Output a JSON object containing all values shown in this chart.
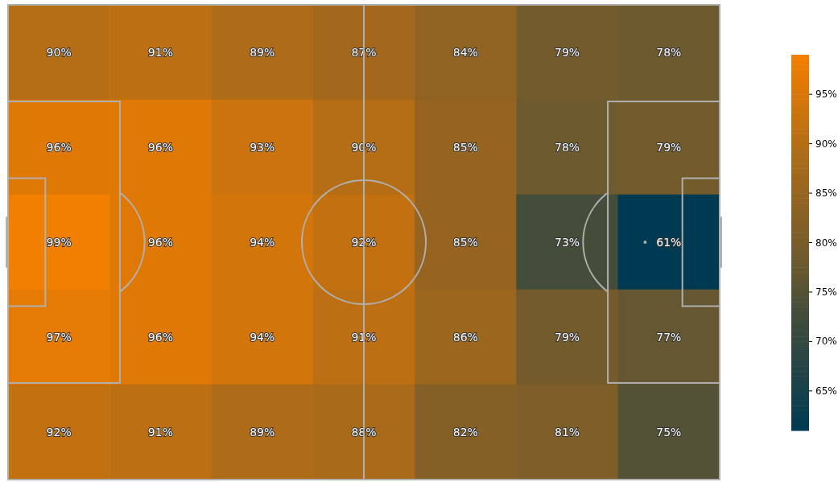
{
  "chart_data": {
    "type": "heatmap",
    "categories": [
      null,
      null,
      null,
      null,
      null,
      null,
      null
    ],
    "y_categories": [
      null,
      null,
      null,
      null,
      null
    ],
    "cells": [
      [
        90,
        91,
        89,
        87,
        84,
        79,
        78
      ],
      [
        96,
        96,
        93,
        90,
        85,
        78,
        79
      ],
      [
        99,
        96,
        94,
        92,
        85,
        73,
        61
      ],
      [
        97,
        96,
        94,
        91,
        86,
        79,
        77
      ],
      [
        92,
        91,
        89,
        88,
        82,
        81,
        75
      ]
    ],
    "cell_labels": [
      [
        "90%",
        "91%",
        "89%",
        "87%",
        "84%",
        "79%",
        "78%"
      ],
      [
        "96%",
        "96%",
        "93%",
        "90%",
        "85%",
        "78%",
        "79%"
      ],
      [
        "99%",
        "96%",
        "94%",
        "92%",
        "85%",
        "73%",
        "61%"
      ],
      [
        "97%",
        "96%",
        "94%",
        "91%",
        "86%",
        "79%",
        "77%"
      ],
      [
        "92%",
        "91%",
        "89%",
        "88%",
        "82%",
        "81%",
        "75%"
      ]
    ],
    "clim": [
      61,
      99
    ],
    "cticks": [
      {
        "value": 65,
        "label": "65%"
      },
      {
        "value": 70,
        "label": "70%"
      },
      {
        "value": 75,
        "label": "75%"
      },
      {
        "value": 80,
        "label": "80%"
      },
      {
        "value": 85,
        "label": "85%"
      },
      {
        "value": 90,
        "label": "90%"
      },
      {
        "value": 95,
        "label": "95%"
      }
    ]
  }
}
